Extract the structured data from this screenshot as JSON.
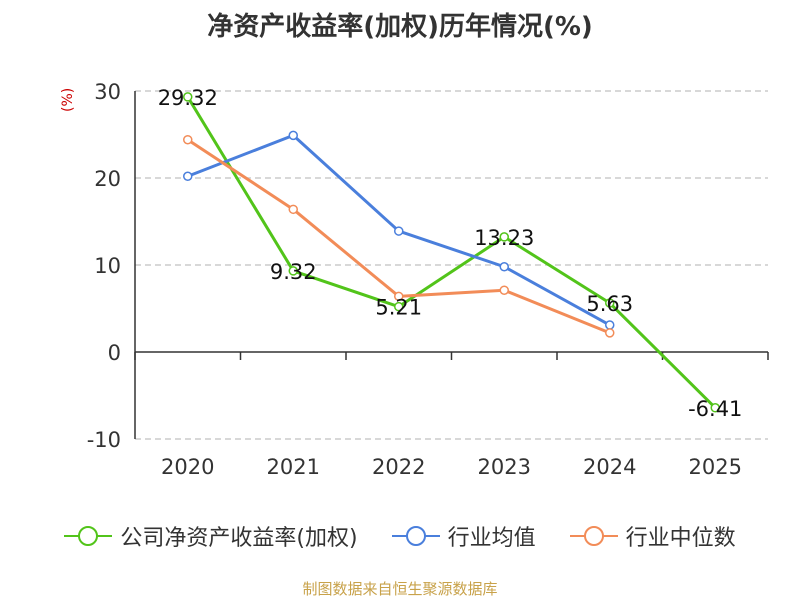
{
  "chart_data": {
    "type": "line",
    "title": "净资产收益率(加权)历年情况(%)",
    "ylabel": "(%)",
    "xlabel": "",
    "categories": [
      "2020",
      "2021",
      "2022",
      "2023",
      "2024",
      "2025"
    ],
    "ylim": [
      -10,
      30
    ],
    "yticks": [
      -10,
      0,
      10,
      20,
      30
    ],
    "grid": true,
    "legend_position": "bottom",
    "series": [
      {
        "name": "公司净资产收益率(加权)",
        "color": "#52c41a",
        "values": [
          29.32,
          9.32,
          5.21,
          13.23,
          5.63,
          -6.41
        ],
        "labels": [
          "29.32",
          "9.32",
          "5.21",
          "13.23",
          "5.63",
          "-6.41"
        ]
      },
      {
        "name": "行业均值",
        "color": "#4a7fdc",
        "values": [
          20.2,
          24.9,
          13.9,
          9.8,
          3.1,
          null
        ]
      },
      {
        "name": "行业中位数",
        "color": "#f28c58",
        "values": [
          24.4,
          16.4,
          6.4,
          7.1,
          2.2,
          null
        ]
      }
    ]
  },
  "source": "制图数据来自恒生聚源数据库"
}
